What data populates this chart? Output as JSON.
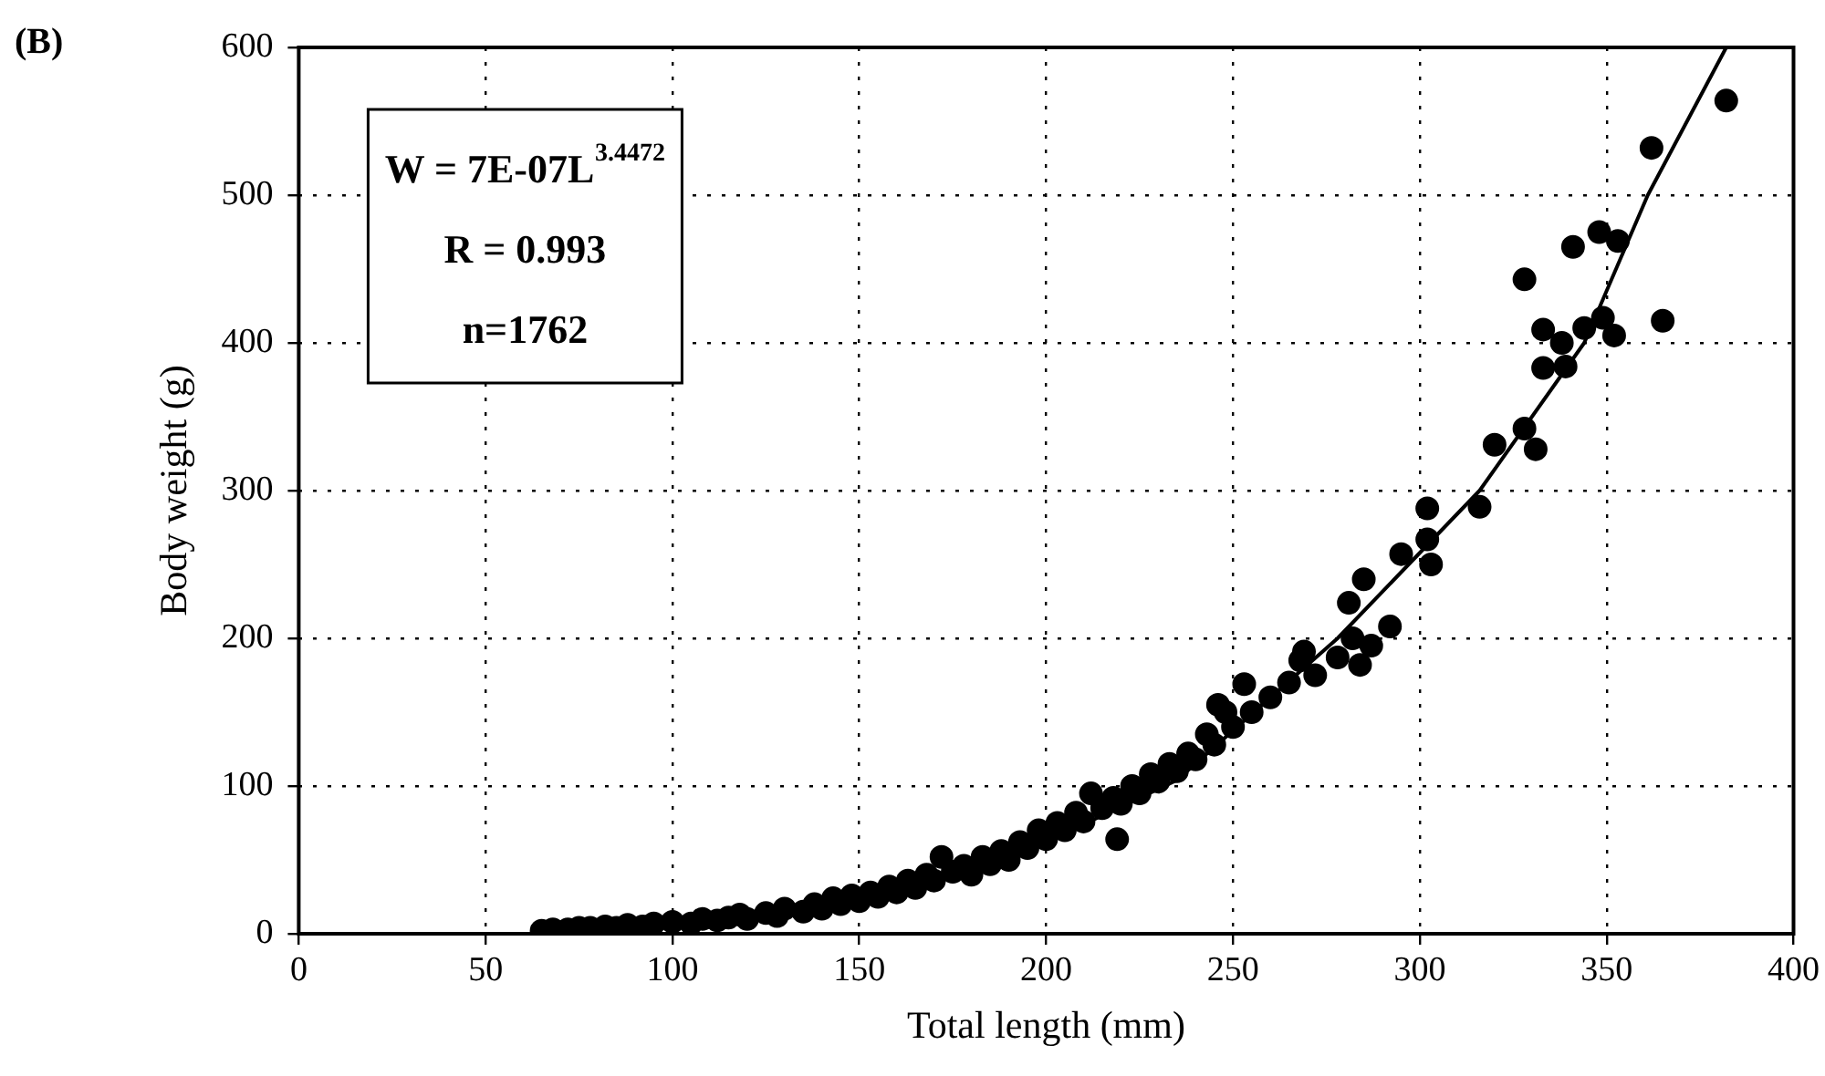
{
  "chart_data": {
    "type": "scatter",
    "title": "(B)",
    "xlabel": "Total length (mm)",
    "ylabel": "Body weight (g)",
    "xlim": [
      0,
      400
    ],
    "xticks": [
      0,
      50,
      100,
      150,
      200,
      250,
      300,
      350,
      400
    ],
    "ylim": [
      0,
      600
    ],
    "yticks": [
      0,
      100,
      200,
      300,
      400,
      500,
      600
    ],
    "grid": true,
    "legend": false,
    "marker": "circle",
    "annotations": [
      "W = 7E-07L$^{3.4472}$",
      "R = 0.993",
      "n=1762"
    ],
    "series": [
      {
        "color": "#000000",
        "x": [
          65,
          68,
          72,
          75,
          78,
          82,
          85,
          88,
          92,
          95,
          100,
          105,
          108,
          112,
          115,
          118,
          120,
          125,
          128,
          130,
          135,
          138,
          140,
          143,
          145,
          148,
          150,
          153,
          155,
          158,
          160,
          163,
          165,
          168,
          170,
          172,
          175,
          178,
          180,
          183,
          185,
          188,
          190,
          193,
          195,
          198,
          200,
          203,
          205,
          208,
          210,
          212,
          215,
          218,
          219,
          220,
          223,
          225,
          228,
          230,
          233,
          235,
          238,
          240,
          243,
          245,
          246,
          248,
          250,
          253,
          255,
          260,
          265,
          268,
          269,
          272,
          278,
          281,
          282,
          284,
          285,
          287,
          292,
          295,
          302,
          302,
          303,
          316,
          320,
          328,
          331,
          328,
          333,
          333,
          338,
          339,
          341,
          344,
          348,
          349,
          352,
          353,
          362,
          365,
          382
        ],
        "values": [
          2,
          3,
          3,
          4,
          4,
          5,
          4,
          6,
          5,
          7,
          8,
          7,
          10,
          9,
          11,
          13,
          10,
          14,
          12,
          17,
          15,
          20,
          17,
          24,
          20,
          26,
          22,
          28,
          25,
          32,
          28,
          36,
          31,
          40,
          36,
          52,
          42,
          46,
          40,
          52,
          47,
          56,
          50,
          62,
          58,
          70,
          64,
          75,
          70,
          82,
          76,
          95,
          85,
          92,
          64,
          88,
          100,
          95,
          108,
          103,
          115,
          110,
          122,
          118,
          135,
          128,
          155,
          150,
          140,
          169,
          150,
          160,
          170,
          185,
          191,
          175,
          187,
          224,
          200,
          182,
          240,
          195,
          208,
          257,
          288,
          267,
          250,
          289,
          331,
          342,
          328,
          443,
          409,
          383,
          400,
          384,
          465,
          410,
          475,
          417,
          405,
          469,
          532,
          415,
          564
        ]
      },
      {
        "type": "line",
        "color": "#000000",
        "marker": "none",
        "x": [
          65,
          100,
          150,
          200,
          235,
          278,
          316,
          344,
          361,
          382
        ],
        "values": [
          1,
          6,
          23,
          62,
          104,
          200,
          300,
          400,
          500,
          600
        ]
      }
    ]
  }
}
